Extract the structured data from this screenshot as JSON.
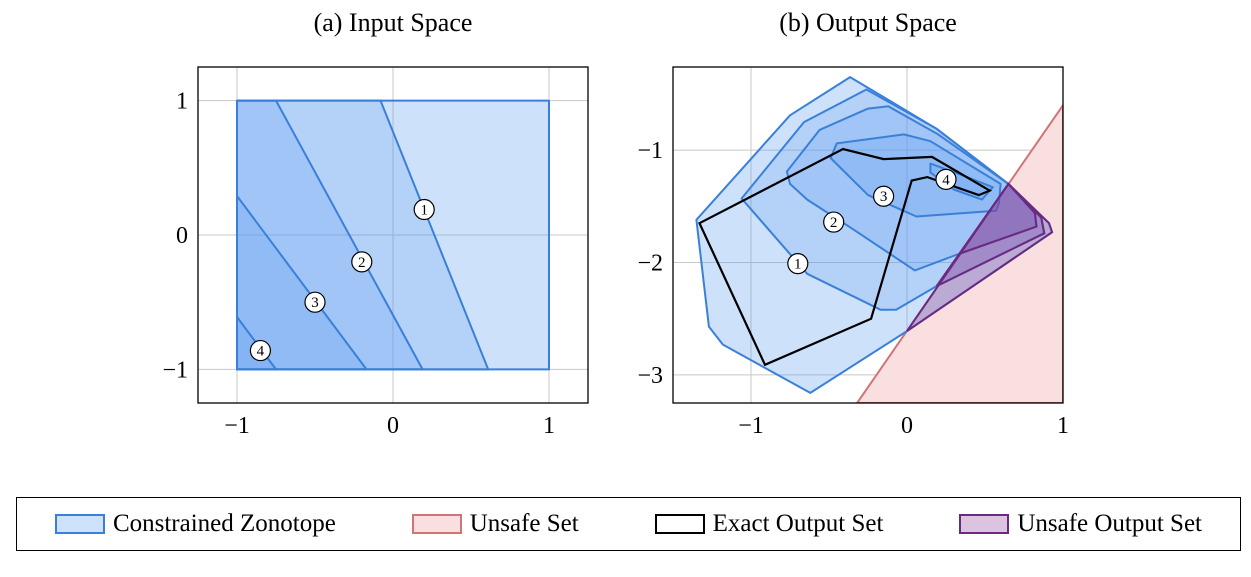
{
  "chart_data": [
    {
      "type": "area",
      "title": "(a) Input Space",
      "xlim": [
        -1.25,
        1.25
      ],
      "ylim": [
        -1.25,
        1.25
      ],
      "xticks": [
        -1,
        0,
        1
      ],
      "yticks": [
        -1,
        0,
        1
      ],
      "xtick_labels": [
        "−1",
        "0",
        "1"
      ],
      "ytick_labels": [
        "−1",
        "0",
        "1"
      ],
      "grid": true,
      "regions": [
        {
          "series": "Constrained Zonotope",
          "points": [
            [
              -1,
              1
            ],
            [
              1,
              1
            ],
            [
              1,
              -1
            ],
            [
              -1,
              -1
            ]
          ]
        },
        {
          "series": "Constrained Zonotope",
          "points": [
            [
              -1,
              1
            ],
            [
              -0.08,
              1
            ],
            [
              0.61,
              -1
            ],
            [
              -1,
              -1
            ]
          ]
        },
        {
          "series": "Constrained Zonotope",
          "points": [
            [
              -1,
              1
            ],
            [
              -0.75,
              1
            ],
            [
              0.19,
              -1
            ],
            [
              -1,
              -1
            ]
          ]
        },
        {
          "series": "Constrained Zonotope",
          "points": [
            [
              -1,
              0.29
            ],
            [
              -0.17,
              -1
            ],
            [
              -1,
              -1
            ]
          ]
        },
        {
          "series": "Constrained Zonotope",
          "points": [
            [
              -1,
              -0.61
            ],
            [
              -0.75,
              -1
            ],
            [
              -1,
              -1
            ]
          ]
        }
      ],
      "annotations": [
        {
          "text": "1",
          "x": 0.2,
          "y": 0.19
        },
        {
          "text": "2",
          "x": -0.2,
          "y": -0.2
        },
        {
          "text": "3",
          "x": -0.5,
          "y": -0.5
        },
        {
          "text": "4",
          "x": -0.85,
          "y": -0.86
        }
      ]
    },
    {
      "type": "area",
      "title": "(b) Output Space",
      "xlim": [
        -1.5,
        1.0
      ],
      "ylim": [
        -3.25,
        -0.26
      ],
      "xticks": [
        -1,
        0,
        1
      ],
      "yticks": [
        -1,
        -2,
        -3
      ],
      "xtick_labels": [
        "−1",
        "0",
        "1"
      ],
      "ytick_labels": [
        "−1",
        "−2",
        "−3"
      ],
      "grid": true,
      "unsafe_set": {
        "series": "Unsafe Set",
        "points": [
          [
            -0.32,
            -3.25
          ],
          [
            1.0,
            -0.6
          ],
          [
            1.0,
            -3.25
          ]
        ]
      },
      "regions": [
        {
          "series": "Constrained Zonotope",
          "points": [
            [
              -0.365,
              -0.35
            ],
            [
              -0.75,
              -0.69
            ],
            [
              -1.35,
              -1.62
            ],
            [
              -1.27,
              -2.57
            ],
            [
              -1.18,
              -2.73
            ],
            [
              -0.62,
              -3.16
            ],
            [
              0,
              -2.61
            ],
            [
              0.93,
              -1.73
            ],
            [
              0.91,
              -1.65
            ],
            [
              0.65,
              -1.3
            ],
            [
              0.19,
              -0.81
            ]
          ]
        },
        {
          "series": "Constrained Zonotope",
          "points": [
            [
              -0.26,
              -0.46
            ],
            [
              -0.66,
              -0.75
            ],
            [
              -1.06,
              -1.43
            ],
            [
              -0.64,
              -2.1
            ],
            [
              -0.17,
              -2.42
            ],
            [
              -0.07,
              -2.42
            ],
            [
              0.19,
              -2.21
            ],
            [
              0.88,
              -1.74
            ],
            [
              0.86,
              -1.6
            ],
            [
              0.65,
              -1.3
            ],
            [
              0.19,
              -0.81
            ]
          ]
        },
        {
          "series": "Constrained Zonotope",
          "points": [
            [
              -0.12,
              -0.61
            ],
            [
              -0.25,
              -0.63
            ],
            [
              -0.56,
              -0.82
            ],
            [
              -0.77,
              -1.19
            ],
            [
              -0.75,
              -1.3
            ],
            [
              -0.64,
              -1.44
            ],
            [
              -0.35,
              -1.7
            ],
            [
              0.05,
              -2.07
            ],
            [
              0.34,
              -1.92
            ],
            [
              0.83,
              -1.68
            ],
            [
              0.82,
              -1.56
            ],
            [
              0.65,
              -1.3
            ],
            [
              0.2,
              -0.86
            ]
          ]
        },
        {
          "series": "Constrained Zonotope",
          "points": [
            [
              -0.45,
              -0.94
            ],
            [
              -0.02,
              -0.86
            ],
            [
              0.15,
              -0.92
            ],
            [
              0.6,
              -1.3
            ],
            [
              0.59,
              -1.47
            ],
            [
              0.57,
              -1.54
            ],
            [
              0.06,
              -1.59
            ],
            [
              -0.25,
              -1.4
            ],
            [
              -0.49,
              -1.07
            ]
          ]
        },
        {
          "series": "Constrained Zonotope",
          "points": [
            [
              0.15,
              -1.12
            ],
            [
              0.35,
              -1.22
            ],
            [
              0.55,
              -1.33
            ],
            [
              0.48,
              -1.44
            ],
            [
              0.3,
              -1.35
            ],
            [
              0.15,
              -1.2
            ]
          ]
        }
      ],
      "unsafe_output": [
        {
          "series": "Unsafe Output Set",
          "points": [
            [
              0,
              -2.61
            ],
            [
              0.93,
              -1.73
            ],
            [
              0.91,
              -1.65
            ],
            [
              0.65,
              -1.3
            ]
          ]
        },
        {
          "series": "Unsafe Output Set",
          "points": [
            [
              0.19,
              -2.21
            ],
            [
              0.88,
              -1.74
            ],
            [
              0.86,
              -1.6
            ],
            [
              0.65,
              -1.3
            ]
          ]
        },
        {
          "series": "Unsafe Output Set",
          "points": [
            [
              0.34,
              -1.92
            ],
            [
              0.83,
              -1.68
            ],
            [
              0.82,
              -1.56
            ],
            [
              0.65,
              -1.3
            ]
          ]
        }
      ],
      "exact_output": {
        "series": "Exact Output Set",
        "points": [
          [
            -1.33,
            -1.65
          ],
          [
            -0.41,
            -0.99
          ],
          [
            -0.15,
            -1.08
          ],
          [
            0.16,
            -1.06
          ],
          [
            0.53,
            -1.36
          ],
          [
            0.46,
            -1.4
          ],
          [
            0.13,
            -1.24
          ],
          [
            0.03,
            -1.27
          ],
          [
            -0.23,
            -2.5
          ],
          [
            -0.91,
            -2.91
          ]
        ]
      },
      "annotations": [
        {
          "text": "1",
          "x": -0.7,
          "y": -2.01
        },
        {
          "text": "2",
          "x": -0.47,
          "y": -1.64
        },
        {
          "text": "3",
          "x": -0.15,
          "y": -1.41
        },
        {
          "text": "4",
          "x": 0.25,
          "y": -1.26
        }
      ]
    }
  ],
  "legend": {
    "placement": "bottom",
    "items": [
      {
        "label": "Constrained Zonotope",
        "fill": "#cfe2fc",
        "stroke": "#3a80d8"
      },
      {
        "label": "Unsafe Set",
        "fill": "#f9dfe0",
        "stroke": "#d07577"
      },
      {
        "label": "Exact Output Set",
        "fill": "#ffffff",
        "stroke": "#000000"
      },
      {
        "label": "Unsafe Output Set",
        "fill": "#dcc4e0",
        "stroke": "#6a2a80"
      }
    ]
  },
  "colors": {
    "zono_fill": "#5a9cf0",
    "zono_stroke": "#3a80d8",
    "unsafe_fill": "#f9dfe0",
    "unsafe_stroke": "#d07577",
    "unsafe_out_fill": "#8a3a9a",
    "unsafe_out_stroke": "#6a2a80"
  }
}
